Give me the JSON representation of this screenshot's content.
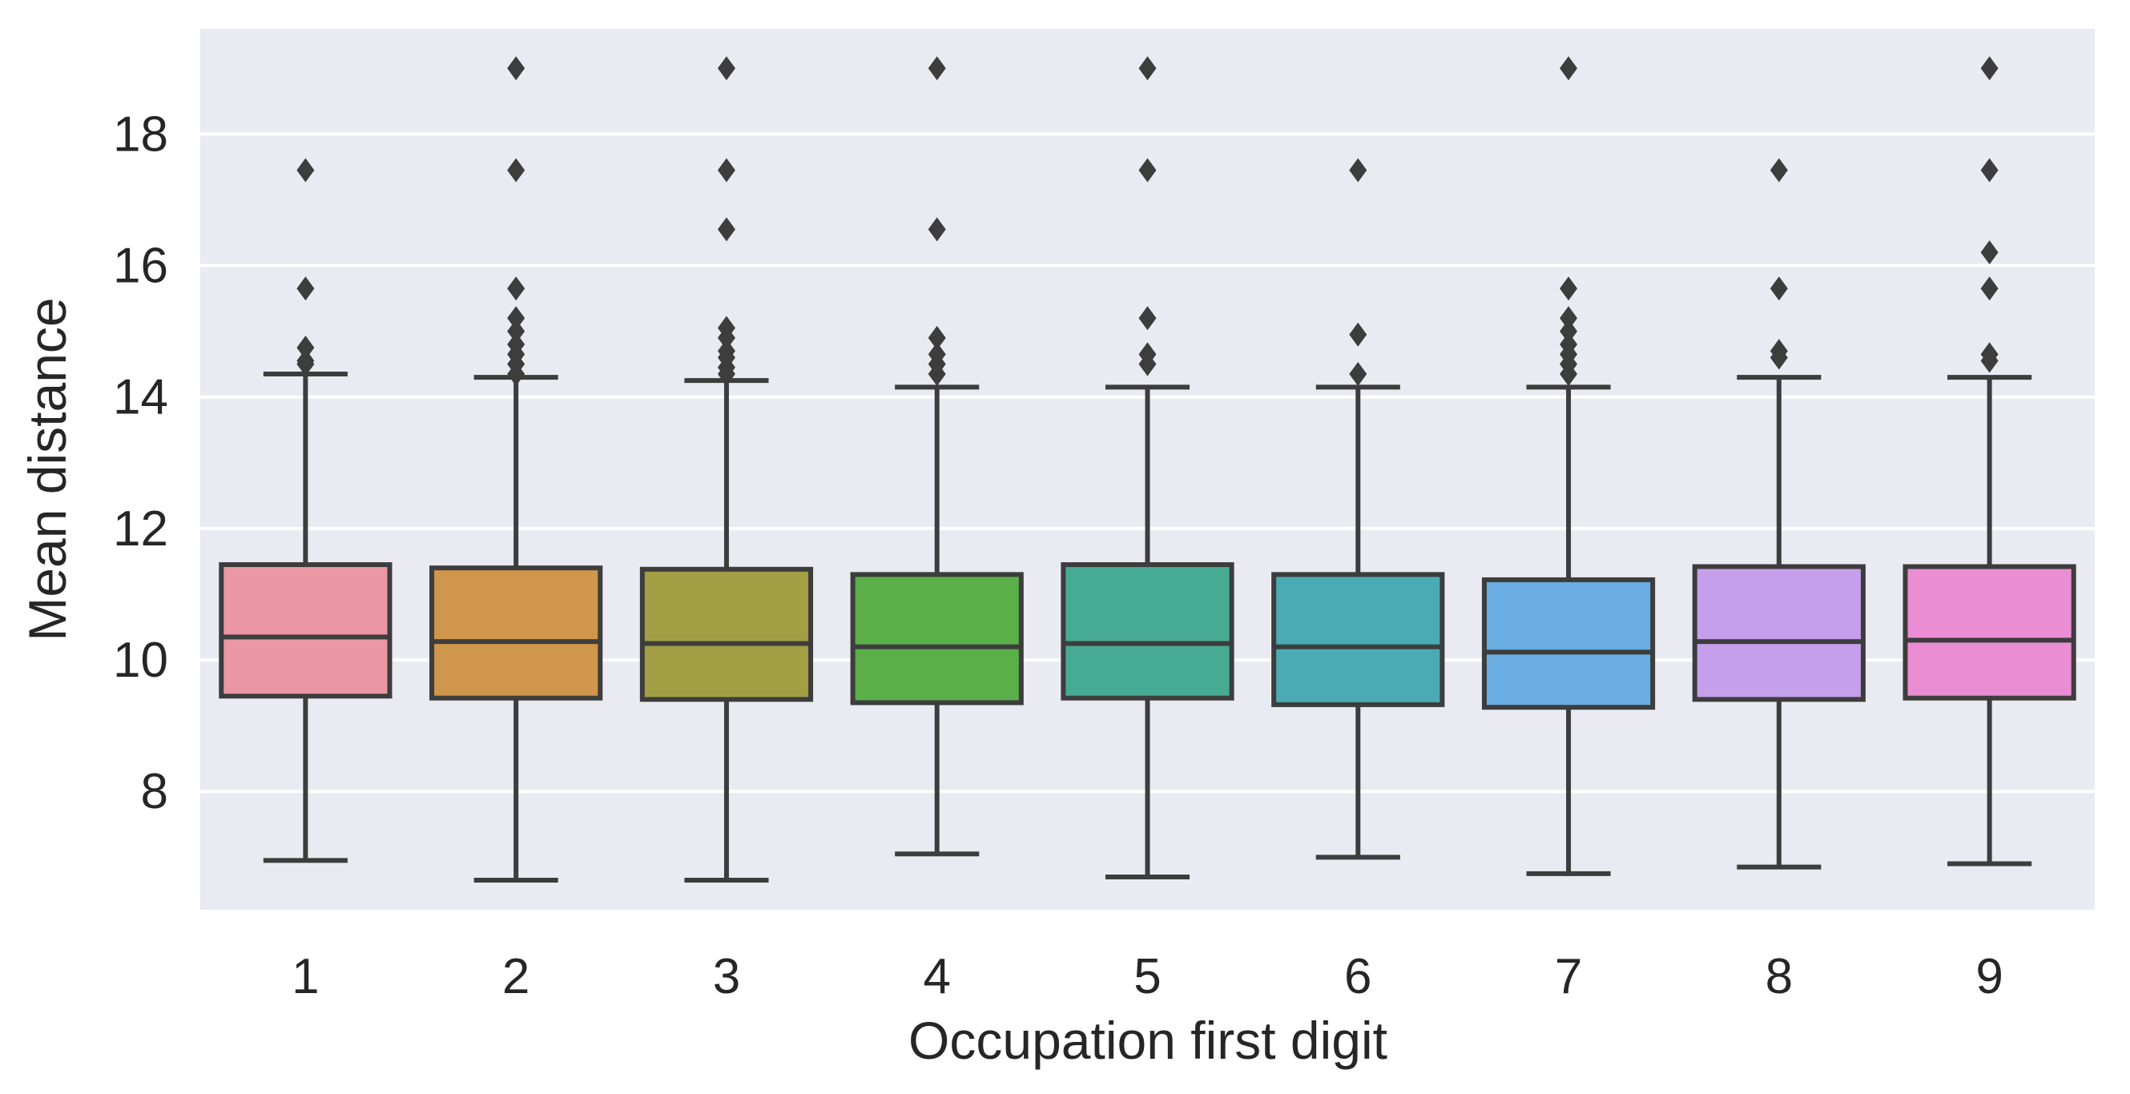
{
  "chart_data": {
    "type": "box",
    "xlabel": "Occupation first digit",
    "ylabel": "Mean distance",
    "ylim": [
      6.2,
      19.6
    ],
    "yticks": [
      8,
      10,
      12,
      14,
      16,
      18
    ],
    "grid": true,
    "legend": "none",
    "background_color": "#eaeaf2",
    "grid_color": "#ffffff",
    "line_color": "#3d3d3d",
    "categories": [
      "1",
      "2",
      "3",
      "4",
      "5",
      "6",
      "7",
      "8",
      "9"
    ],
    "boxes": [
      {
        "category": "1",
        "color": "#ea96a3",
        "whisker_low": 6.95,
        "q1": 9.45,
        "median": 10.35,
        "q3": 11.45,
        "whisker_high": 14.35,
        "outliers": [
          14.5,
          14.55,
          14.75,
          15.65,
          17.45
        ]
      },
      {
        "category": "2",
        "color": "#d0964b",
        "whisker_low": 6.65,
        "q1": 9.42,
        "median": 10.28,
        "q3": 11.4,
        "whisker_high": 14.3,
        "outliers": [
          14.35,
          14.5,
          14.65,
          14.8,
          15.0,
          15.2,
          15.65,
          17.45,
          19.0
        ]
      },
      {
        "category": "3",
        "color": "#a29e44",
        "whisker_low": 6.65,
        "q1": 9.4,
        "median": 10.25,
        "q3": 11.38,
        "whisker_high": 14.25,
        "outliers": [
          14.35,
          14.45,
          14.6,
          14.7,
          14.9,
          15.05,
          16.55,
          17.45,
          19.0
        ]
      },
      {
        "category": "4",
        "color": "#5aaf48",
        "whisker_low": 7.05,
        "q1": 9.35,
        "median": 10.2,
        "q3": 11.3,
        "whisker_high": 14.15,
        "outliers": [
          14.35,
          14.5,
          14.65,
          14.9,
          16.55,
          19.0
        ]
      },
      {
        "category": "5",
        "color": "#46ab92",
        "whisker_low": 6.7,
        "q1": 9.42,
        "median": 10.25,
        "q3": 11.45,
        "whisker_high": 14.15,
        "outliers": [
          14.5,
          14.65,
          15.2,
          17.45,
          19.0
        ]
      },
      {
        "category": "6",
        "color": "#4aabb5",
        "whisker_low": 7.0,
        "q1": 9.32,
        "median": 10.2,
        "q3": 11.3,
        "whisker_high": 14.15,
        "outliers": [
          14.35,
          14.95,
          17.45
        ]
      },
      {
        "category": "7",
        "color": "#6aaee3",
        "whisker_low": 6.75,
        "q1": 9.28,
        "median": 10.12,
        "q3": 11.22,
        "whisker_high": 14.15,
        "outliers": [
          14.35,
          14.5,
          14.65,
          14.8,
          15.0,
          15.2,
          15.65,
          19.0
        ]
      },
      {
        "category": "8",
        "color": "#c59feb",
        "whisker_low": 6.85,
        "q1": 9.4,
        "median": 10.28,
        "q3": 11.42,
        "whisker_high": 14.3,
        "outliers": [
          14.6,
          14.7,
          15.65,
          17.45
        ]
      },
      {
        "category": "9",
        "color": "#ea8dd3",
        "whisker_low": 6.9,
        "q1": 9.42,
        "median": 10.3,
        "q3": 11.42,
        "whisker_high": 14.3,
        "outliers": [
          14.55,
          14.65,
          15.65,
          16.2,
          17.45,
          19.0
        ]
      }
    ]
  }
}
